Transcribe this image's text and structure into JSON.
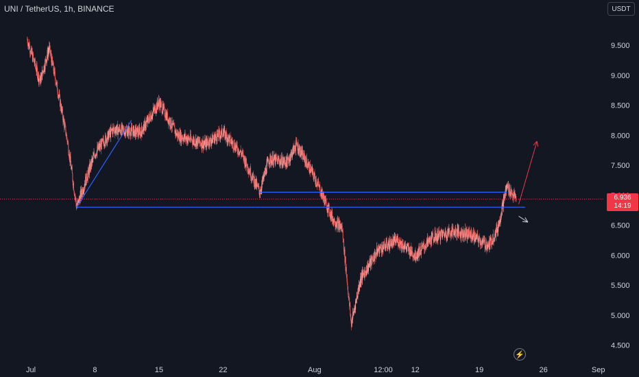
{
  "header": {
    "title": "UNI / TetherUS, 1h, BINANCE",
    "currency_button": "USDT"
  },
  "last_price": {
    "value": "6.936",
    "countdown": "14:19"
  },
  "colors": {
    "background": "#131722",
    "candle": "#ef5350",
    "candle_alt": "#f5a3a1",
    "drawing_line": "#2962ff",
    "arrow_up": "#f23645",
    "arrow_down": "#d1d4dc",
    "last_price_line": "#f23645"
  },
  "icons": {
    "replay": "lightning-icon"
  },
  "chart_data": {
    "type": "candlestick",
    "y_ticks": [
      "4.500",
      "5.000",
      "5.500",
      "6.000",
      "6.500",
      "7.000",
      "7.500",
      "8.000",
      "8.500",
      "9.000",
      "9.500"
    ],
    "x_ticks": [
      "Jul",
      "8",
      "15",
      "22",
      "Aug",
      "12:00",
      "12",
      "19",
      "26",
      "Sep"
    ],
    "ylim": [
      4.4,
      10.0
    ],
    "key_points": [
      {
        "t": "Jun 30",
        "price": 9.6
      },
      {
        "t": "Jul 2",
        "price": 8.9
      },
      {
        "t": "Jul 3",
        "price": 9.45
      },
      {
        "t": "Jul 4",
        "price": 8.7
      },
      {
        "t": "Jul 5",
        "price": 7.9
      },
      {
        "t": "Jul 6",
        "price": 6.8
      },
      {
        "t": "Jul 8",
        "price": 7.7
      },
      {
        "t": "Jul 10",
        "price": 8.1
      },
      {
        "t": "Jul 13",
        "price": 8.05
      },
      {
        "t": "Jul 15",
        "price": 8.55
      },
      {
        "t": "Jul 17",
        "price": 8.0
      },
      {
        "t": "Jul 20",
        "price": 7.85
      },
      {
        "t": "Jul 22",
        "price": 8.05
      },
      {
        "t": "Jul 24",
        "price": 7.7
      },
      {
        "t": "Jul 26",
        "price": 7.05
      },
      {
        "t": "Jul 27",
        "price": 7.6
      },
      {
        "t": "Jul 29",
        "price": 7.55
      },
      {
        "t": "Jul 30",
        "price": 7.85
      },
      {
        "t": "Aug 1",
        "price": 7.3
      },
      {
        "t": "Aug 2",
        "price": 6.95
      },
      {
        "t": "Aug 3",
        "price": 6.6
      },
      {
        "t": "Aug 4",
        "price": 6.45
      },
      {
        "t": "Aug 5",
        "price": 4.85
      },
      {
        "t": "Aug 6",
        "price": 5.6
      },
      {
        "t": "Aug 8",
        "price": 6.1
      },
      {
        "t": "Aug 10",
        "price": 6.25
      },
      {
        "t": "Aug 12",
        "price": 6.0
      },
      {
        "t": "Aug 14",
        "price": 6.3
      },
      {
        "t": "Aug 16",
        "price": 6.4
      },
      {
        "t": "Aug 18",
        "price": 6.35
      },
      {
        "t": "Aug 20",
        "price": 6.15
      },
      {
        "t": "Aug 21",
        "price": 6.45
      },
      {
        "t": "Aug 22",
        "price": 7.15
      },
      {
        "t": "Aug 23",
        "price": 6.94
      }
    ],
    "last_price": 6.936,
    "drawings": {
      "trend_line": {
        "from": {
          "t": "Jul 6",
          "price": 6.8
        },
        "to": {
          "t": "Jul 12",
          "price": 8.25
        }
      },
      "horizontal_lines": [
        {
          "price": 7.05,
          "from": "Jul 26",
          "to": "Aug 22"
        },
        {
          "price": 6.8,
          "from": "Jul 6",
          "to": "Aug 24"
        }
      ],
      "arrow_up": {
        "from": {
          "t": "Aug 23",
          "price": 6.85
        },
        "to": {
          "t": "Aug 25",
          "price": 7.9
        }
      },
      "arrow_down": {
        "from": {
          "t": "Aug 23",
          "price": 6.65
        },
        "to": {
          "t": "Aug 24",
          "price": 6.55
        }
      }
    },
    "grid": false
  }
}
